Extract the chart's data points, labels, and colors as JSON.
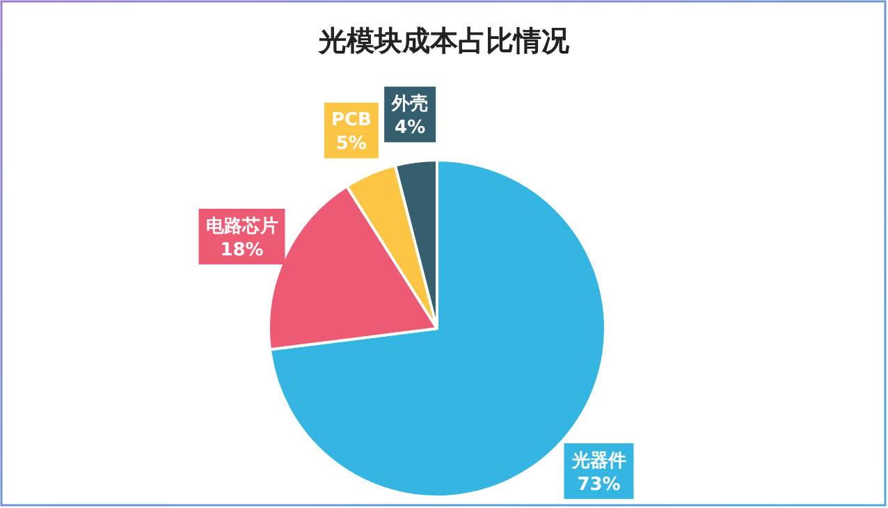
{
  "chart_data": {
    "type": "pie",
    "title": "光模块成本占比情况",
    "categories": [
      "光器件",
      "电路芯片",
      "PCB",
      "外壳"
    ],
    "values": [
      73,
      18,
      5,
      4
    ],
    "colors": [
      "#35b6e2",
      "#ec5b73",
      "#fcc543",
      "#355f6f"
    ],
    "value_labels": [
      "73%",
      "18%",
      "5%",
      "4%"
    ],
    "legend": false
  }
}
